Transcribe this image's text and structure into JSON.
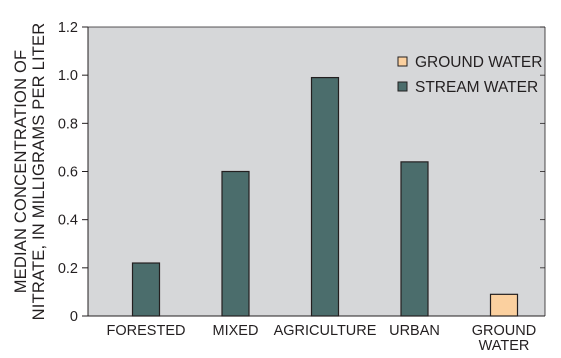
{
  "chart_data": {
    "type": "bar",
    "categories": [
      "FORESTED",
      "MIXED",
      "AGRICULTURE",
      "URBAN",
      "GROUND WATER"
    ],
    "category_label_lines": [
      [
        "FORESTED"
      ],
      [
        "MIXED"
      ],
      [
        "AGRICULTURE"
      ],
      [
        "URBAN"
      ],
      [
        "GROUND",
        "WATER"
      ]
    ],
    "series": [
      {
        "name": "GROUND WATER",
        "color": "#fbd09f",
        "values": [
          null,
          null,
          null,
          null,
          0.09
        ]
      },
      {
        "name": "STREAM WATER",
        "color": "#4b6d6c",
        "values": [
          0.22,
          0.6,
          0.99,
          0.64,
          null
        ]
      }
    ],
    "ylabel_lines": [
      "MEDIAN CONCENTRATION OF",
      "NITRATE, IN MILLIGRAMS PER LITER"
    ],
    "ylim": [
      0,
      1.2
    ],
    "yticks": [
      "0",
      "0.2",
      "0.4",
      "0.6",
      "0.8",
      "1.0",
      "1.2"
    ],
    "grid": false,
    "legend_position": "top-right",
    "plot_background": "#d6d7d9",
    "bar_outline": "#231f20"
  }
}
